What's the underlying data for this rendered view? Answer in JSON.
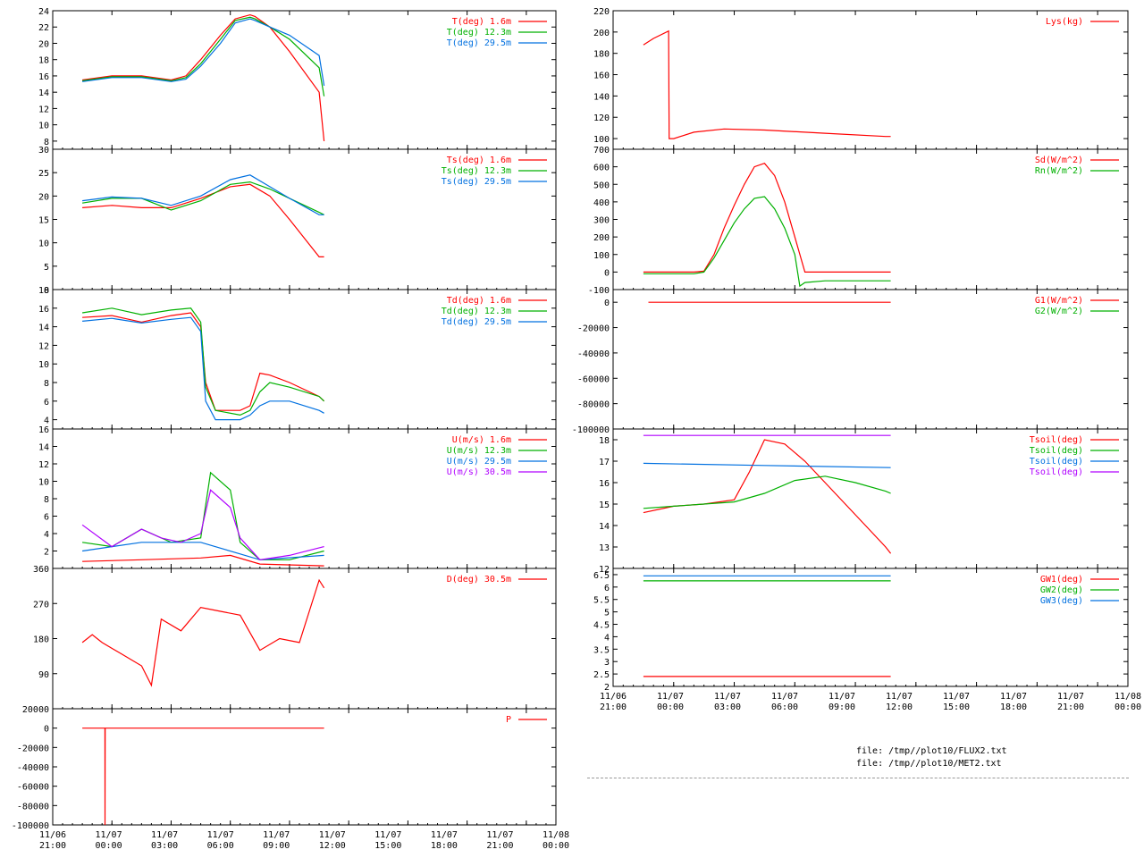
{
  "files": [
    "file: /tmp//plot10/FLUX2.txt",
    "file: /tmp//plot10/MET2.txt"
  ],
  "time_axis": {
    "range": [
      -3,
      48
    ],
    "ticks": [
      -3,
      3,
      9,
      15,
      21,
      27,
      33,
      39,
      45
    ],
    "left_labels": [
      [
        "11/06",
        "21:00"
      ],
      [
        "11/07",
        "00:00"
      ],
      [
        "11/07",
        "03:00"
      ],
      [
        "11/07",
        "06:00"
      ],
      [
        "11/07",
        "09:00"
      ],
      [
        "11/07",
        "12:00"
      ],
      [
        "11/07",
        "15:00"
      ],
      [
        "11/07",
        "18:00"
      ],
      [
        "11/07",
        "21:00"
      ],
      [
        "11/08",
        "00:00"
      ]
    ],
    "right_labels": [
      [
        "11/06",
        "21:00"
      ],
      [
        "11/07",
        "00:00"
      ],
      [
        "11/07",
        "03:00"
      ],
      [
        "11/07",
        "06:00"
      ],
      [
        "11/07",
        "09:00"
      ],
      [
        "11/07",
        "12:00"
      ],
      [
        "11/07",
        "15:00"
      ],
      [
        "11/07",
        "18:00"
      ],
      [
        "11/07",
        "21:00"
      ],
      [
        "11/08",
        "00:00"
      ]
    ]
  },
  "chart_data": [
    {
      "type": "line",
      "column": "left",
      "ylim": [
        7,
        24
      ],
      "yticks": [
        8,
        10,
        12,
        14,
        16,
        18,
        20,
        22,
        24
      ],
      "series": [
        {
          "name": "T(deg)  1.6m",
          "color": "#ff0000",
          "x": [
            0,
            3,
            6,
            9,
            10.5,
            12,
            14,
            15.5,
            17,
            17.5,
            19,
            21,
            24,
            24.5
          ],
          "y": [
            15.5,
            16.0,
            16.0,
            15.5,
            16.0,
            18.0,
            21.0,
            23.0,
            23.5,
            23.3,
            22.0,
            19.0,
            14.0,
            8.0
          ]
        },
        {
          "name": "T(deg) 12.3m",
          "color": "#00b000",
          "x": [
            0,
            3,
            6,
            9,
            10.5,
            12,
            14,
            15.5,
            17,
            17.5,
            19,
            21,
            24,
            24.5
          ],
          "y": [
            15.4,
            15.9,
            15.9,
            15.4,
            15.8,
            17.5,
            20.5,
            22.8,
            23.2,
            23.0,
            22.0,
            20.5,
            17.0,
            13.5
          ]
        },
        {
          "name": "T(deg) 29.5m",
          "color": "#0070e0",
          "x": [
            0,
            3,
            6,
            9,
            10.5,
            12,
            14,
            15.5,
            17,
            17.5,
            19,
            21,
            24,
            24.5
          ],
          "y": [
            15.3,
            15.8,
            15.8,
            15.3,
            15.6,
            17.2,
            20.0,
            22.5,
            23.0,
            22.8,
            22.0,
            21.0,
            18.5,
            14.8
          ]
        }
      ]
    },
    {
      "type": "line",
      "column": "left",
      "ylim": [
        0,
        30
      ],
      "yticks": [
        0,
        5,
        10,
        15,
        20,
        25,
        30
      ],
      "series": [
        {
          "name": "Ts(deg)  1.6m",
          "color": "#ff0000",
          "x": [
            0,
            3,
            6,
            9,
            12,
            15,
            17,
            19,
            21,
            24,
            24.5
          ],
          "y": [
            17.5,
            18.0,
            17.5,
            17.5,
            19.5,
            22.0,
            22.5,
            20.0,
            15.0,
            7.0,
            7.0
          ]
        },
        {
          "name": "Ts(deg) 12.3m",
          "color": "#00b000",
          "x": [
            0,
            3,
            6,
            9,
            12,
            15,
            17,
            19,
            21,
            24,
            24.5
          ],
          "y": [
            18.5,
            19.5,
            19.5,
            17.0,
            19.0,
            22.5,
            23.0,
            21.5,
            19.5,
            16.5,
            16.0
          ]
        },
        {
          "name": "Ts(deg) 29.5m",
          "color": "#0070e0",
          "x": [
            0,
            3,
            6,
            9,
            12,
            15,
            17,
            19,
            21,
            24,
            24.5
          ],
          "y": [
            19.0,
            19.8,
            19.5,
            18.0,
            20.0,
            23.5,
            24.5,
            22.0,
            19.5,
            16.0,
            16.0
          ]
        }
      ]
    },
    {
      "type": "line",
      "column": "left",
      "ylim": [
        3,
        18
      ],
      "yticks": [
        4,
        6,
        8,
        10,
        12,
        14,
        16,
        18
      ],
      "series": [
        {
          "name": "Td(deg)  1.6m",
          "color": "#ff0000",
          "x": [
            0,
            3,
            6,
            9,
            11,
            12,
            12.5,
            13.5,
            16,
            17,
            18,
            19,
            21,
            24,
            24.5
          ],
          "y": [
            15.0,
            15.2,
            14.5,
            15.2,
            15.5,
            14.0,
            8.0,
            5.0,
            5.0,
            5.5,
            9.0,
            8.8,
            8.0,
            6.5,
            6.0
          ]
        },
        {
          "name": "Td(deg) 12.3m",
          "color": "#00b000",
          "x": [
            0,
            3,
            6,
            9,
            11,
            12,
            12.5,
            13.5,
            16,
            17,
            18,
            19,
            21,
            24,
            24.5
          ],
          "y": [
            15.5,
            16.0,
            15.3,
            15.8,
            16.0,
            14.5,
            7.5,
            5.0,
            4.5,
            5.0,
            7.0,
            8.0,
            7.5,
            6.5,
            6.0
          ]
        },
        {
          "name": "Td(deg) 29.5m",
          "color": "#0070e0",
          "x": [
            0,
            3,
            6,
            9,
            11,
            12,
            12.5,
            13.5,
            16,
            17,
            18,
            19,
            21,
            24,
            24.5
          ],
          "y": [
            14.6,
            14.9,
            14.4,
            14.8,
            15.0,
            13.5,
            6.0,
            4.0,
            4.0,
            4.5,
            5.5,
            6.0,
            6.0,
            5.0,
            4.7
          ]
        }
      ]
    },
    {
      "type": "line",
      "column": "left",
      "ylim": [
        0,
        16
      ],
      "yticks": [
        2,
        4,
        6,
        8,
        10,
        12,
        14,
        16
      ],
      "series": [
        {
          "name": "U(m/s)  1.6m",
          "color": "#ff0000",
          "x": [
            0,
            6,
            12,
            15,
            18,
            24.5
          ],
          "y": [
            0.8,
            1.0,
            1.2,
            1.5,
            0.5,
            0.3
          ]
        },
        {
          "name": "U(m/s) 12.3m",
          "color": "#00b000",
          "x": [
            0,
            3,
            6,
            9,
            12,
            13,
            15,
            16,
            18,
            21,
            24.5
          ],
          "y": [
            3.0,
            2.5,
            4.5,
            3.0,
            3.5,
            11.0,
            9.0,
            3.0,
            1.0,
            1.0,
            2.0
          ]
        },
        {
          "name": "U(m/s) 29.5m",
          "color": "#0070e0",
          "x": [
            0,
            6,
            12,
            18,
            24.5
          ],
          "y": [
            2.0,
            3.0,
            3.0,
            1.0,
            1.5
          ]
        },
        {
          "name": "U(m/s) 30.5m",
          "color": "#b000ff",
          "x": [
            0,
            3,
            6,
            8,
            10,
            12,
            13,
            15,
            16,
            18,
            21,
            24.5
          ],
          "y": [
            5.0,
            2.5,
            4.5,
            3.5,
            3.0,
            4.0,
            9.0,
            7.0,
            3.5,
            1.0,
            1.5,
            2.5
          ]
        }
      ]
    },
    {
      "type": "line",
      "column": "left",
      "ylim": [
        0,
        360
      ],
      "yticks": [
        90,
        180,
        270,
        360
      ],
      "series": [
        {
          "name": "D(deg) 30.5m",
          "color": "#ff0000",
          "x": [
            0,
            1,
            2,
            4,
            6,
            7,
            8,
            10,
            12,
            14,
            16,
            18,
            20,
            22,
            24,
            24.5
          ],
          "y": [
            170,
            190,
            170,
            140,
            110,
            60,
            230,
            200,
            260,
            250,
            240,
            150,
            180,
            170,
            330,
            310
          ]
        }
      ]
    },
    {
      "type": "line",
      "column": "left",
      "ylim": [
        -100000,
        20000
      ],
      "yticks": [
        -100000,
        -80000,
        -60000,
        -40000,
        -20000,
        0,
        20000
      ],
      "series": [
        {
          "name": "P",
          "color": "#ff0000",
          "x": [
            0,
            2.29,
            2.3,
            2.32,
            2.34,
            24.5
          ],
          "y": [
            0,
            0,
            -100000,
            0,
            0,
            0
          ]
        }
      ]
    },
    {
      "type": "line",
      "column": "right",
      "ylim": [
        90,
        220
      ],
      "yticks": [
        100,
        120,
        140,
        160,
        180,
        200,
        220
      ],
      "series": [
        {
          "name": "Lys(kg)",
          "color": "#ff0000",
          "x": [
            0,
            1,
            2.5,
            2.55,
            3,
            5,
            8,
            12,
            18,
            24,
            24.5
          ],
          "y": [
            188,
            194,
            201,
            100,
            100,
            106,
            109,
            108,
            105,
            102,
            102
          ]
        }
      ]
    },
    {
      "type": "line",
      "column": "right",
      "ylim": [
        -100,
        700
      ],
      "yticks": [
        -100,
        0,
        100,
        200,
        300,
        400,
        500,
        600,
        700
      ],
      "series": [
        {
          "name": "Sd(W/m^2)",
          "color": "#ff0000",
          "x": [
            0,
            5,
            6,
            7,
            8,
            9,
            10,
            11,
            12,
            13,
            14,
            15,
            16,
            24.5
          ],
          "y": [
            0,
            0,
            5,
            100,
            250,
            380,
            500,
            600,
            620,
            550,
            400,
            200,
            0,
            0
          ]
        },
        {
          "name": "Rn(W/m^2)",
          "color": "#00b000",
          "x": [
            0,
            5,
            6,
            7,
            8,
            9,
            10,
            11,
            12,
            13,
            14,
            15,
            15.5,
            16,
            18,
            24.5
          ],
          "y": [
            -10,
            -10,
            0,
            80,
            180,
            280,
            360,
            420,
            430,
            360,
            250,
            100,
            -80,
            -60,
            -50,
            -50
          ]
        }
      ]
    },
    {
      "type": "line",
      "column": "right",
      "ylim": [
        -100000,
        10000
      ],
      "yticks": [
        -100000,
        -80000,
        -60000,
        -40000,
        -20000,
        0
      ],
      "series": [
        {
          "name": "G1(W/m^2)",
          "color": "#ff0000",
          "x": [
            0.5,
            24.5
          ],
          "y": [
            0,
            0
          ]
        },
        {
          "name": "G2(W/m^2)",
          "color": "#00b000",
          "x": [],
          "y": []
        }
      ]
    },
    {
      "type": "line",
      "column": "right",
      "ylim": [
        12,
        18.5
      ],
      "yticks": [
        12,
        13,
        14,
        15,
        16,
        17,
        18
      ],
      "series": [
        {
          "name": "Tsoil(deg)",
          "color": "#ff0000",
          "x": [
            0,
            3,
            6,
            9,
            10.5,
            12,
            14,
            16,
            18,
            20,
            22,
            24,
            24.5
          ],
          "y": [
            14.6,
            14.9,
            15.0,
            15.2,
            16.5,
            18.0,
            17.8,
            17.0,
            16.0,
            15.0,
            14.0,
            13.0,
            12.7
          ]
        },
        {
          "name": "Tsoil(deg)",
          "color": "#00b000",
          "x": [
            0,
            3,
            6,
            9,
            12,
            15,
            18,
            21,
            24,
            24.5
          ],
          "y": [
            14.8,
            14.9,
            15.0,
            15.1,
            15.5,
            16.1,
            16.3,
            16.0,
            15.6,
            15.5
          ]
        },
        {
          "name": "Tsoil(deg)",
          "color": "#0070e0",
          "x": [
            0,
            12,
            24.5
          ],
          "y": [
            16.9,
            16.8,
            16.7
          ]
        },
        {
          "name": "Tsoil(deg)",
          "color": "#b000ff",
          "x": [
            0,
            12,
            24.5
          ],
          "y": [
            18.2,
            18.2,
            18.2
          ]
        }
      ]
    },
    {
      "type": "line",
      "column": "right",
      "ylim": [
        2,
        6.75
      ],
      "yticks": [
        2,
        2.5,
        3,
        3.5,
        4,
        4.5,
        5,
        5.5,
        6,
        6.5
      ],
      "series": [
        {
          "name": "GW1(deg)",
          "color": "#ff0000",
          "x": [
            0,
            24.5
          ],
          "y": [
            2.4,
            2.4
          ]
        },
        {
          "name": "GW2(deg)",
          "color": "#00b000",
          "x": [
            0,
            24.5
          ],
          "y": [
            6.25,
            6.25
          ]
        },
        {
          "name": "GW3(deg)",
          "color": "#0070e0",
          "x": [
            0,
            24.5
          ],
          "y": [
            6.45,
            6.45
          ]
        }
      ]
    }
  ]
}
